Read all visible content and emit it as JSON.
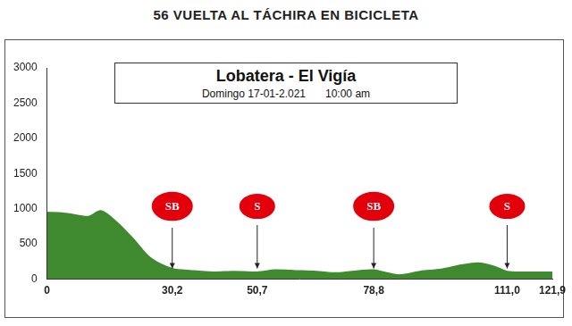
{
  "chart_data": {
    "type": "area",
    "title": "56 VUELTA AL TÁCHIRA EN BICICLETA",
    "subtitle": "Lobatera - El Vigía",
    "annotations": [
      "Domingo 17-01-2.021",
      "10:00 am"
    ],
    "x": [
      0,
      5,
      10,
      13,
      17,
      21,
      25,
      30.2,
      35,
      40,
      45,
      50.7,
      55,
      60,
      65,
      70,
      75,
      78.8,
      82,
      85,
      90,
      95,
      100,
      104,
      108,
      111,
      115,
      121.9
    ],
    "values": [
      950,
      930,
      890,
      970,
      800,
      560,
      300,
      150,
      120,
      100,
      110,
      100,
      130,
      120,
      110,
      90,
      120,
      130,
      90,
      60,
      110,
      140,
      200,
      230,
      180,
      110,
      100,
      100
    ],
    "color": "#3f8a2e",
    "xlim": [
      0,
      121.9
    ],
    "xticks": [
      0,
      {
        "value": 30.2,
        "label": "30,2"
      },
      {
        "value": 50.7,
        "label": "50,7"
      },
      {
        "value": 78.8,
        "label": "78,8"
      },
      {
        "value": 111,
        "label": "111,0"
      },
      {
        "value": 121.9,
        "label": "121,9"
      }
    ],
    "ylim": [
      0,
      3000
    ],
    "yticks": [
      0,
      500,
      1000,
      1500,
      2000,
      2500,
      3000
    ],
    "grid": false,
    "markers": [
      {
        "x": 30.2,
        "label": "SB"
      },
      {
        "x": 50.7,
        "label": "S"
      },
      {
        "x": 78.8,
        "label": "SB"
      },
      {
        "x": 111,
        "label": "S"
      }
    ]
  }
}
